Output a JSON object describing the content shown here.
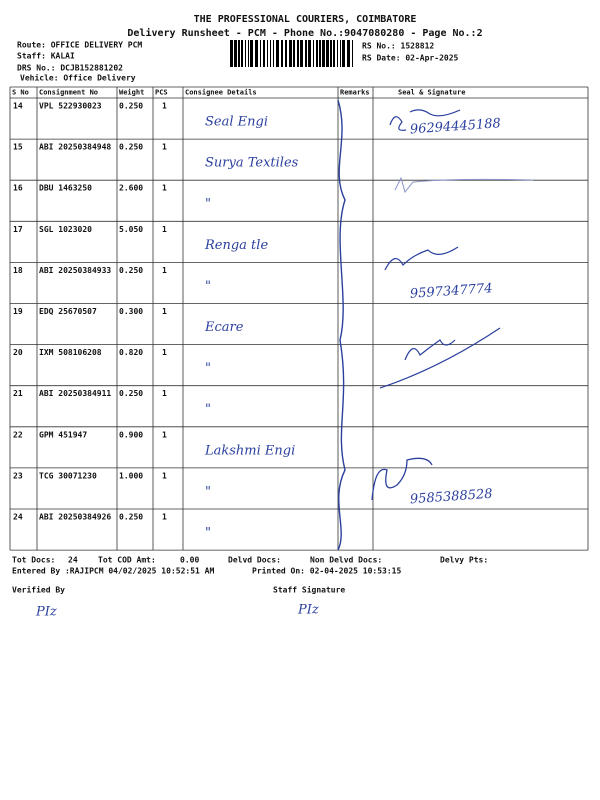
{
  "header": {
    "title": "THE PROFESSIONAL COURIERS, COIMBATORE",
    "subtitle": "Delivery Runsheet - PCM - Phone No.:9047080280 - Page No.:2",
    "route": "Route: OFFICE DELIVERY PCM",
    "staff": "Staff: KALAI",
    "drs_no": "DRS No.: DCJB152881202",
    "vehicle": "Vehicle: Office Delivery",
    "rs_no": "RS No.: 1528812",
    "rs_date": "RS Date: 02-Apr-2025"
  },
  "table": {
    "columns": [
      "S No",
      "Consignment No",
      "Weight",
      "PCS",
      "Consignee Details",
      "Remarks",
      "Seal & Signature"
    ],
    "rows": [
      [
        "14",
        "VPL 522930023",
        "0.250",
        "1"
      ],
      [
        "15",
        "ABI 20250384948",
        "0.250",
        "1"
      ],
      [
        "16",
        "DBU 1463250",
        "2.600",
        "1"
      ],
      [
        "17",
        "SGL 1023020",
        "5.050",
        "1"
      ],
      [
        "18",
        "ABI 20250384933",
        "0.250",
        "1"
      ],
      [
        "19",
        "EDQ 25670507",
        "0.300",
        "1"
      ],
      [
        "20",
        "IXM 508106208",
        "0.820",
        "1"
      ],
      [
        "21",
        "ABI 20250384911",
        "0.250",
        "1"
      ],
      [
        "22",
        "GPM 451947",
        "0.900",
        "1"
      ],
      [
        "23",
        "TCG 30071230",
        "1.000",
        "1"
      ],
      [
        "24",
        "ABI 20250384926",
        "0.250",
        "1"
      ]
    ],
    "handwritten_consignees": [
      "Seal Engi",
      "Surya Textiles",
      "\"",
      "Renga tle",
      "\"",
      "Ecare",
      "\"",
      "\"",
      "Lakshmi Engi",
      "\"",
      "\""
    ],
    "handwritten_phones": [
      {
        "row": 0,
        "text": "96294445188"
      },
      {
        "row": 4,
        "text": "9597347774"
      },
      {
        "row": 9,
        "text": "9585388528"
      }
    ]
  },
  "footer": {
    "tot_docs_label": "Tot Docs:",
    "tot_docs": "24",
    "tot_cod_label": "Tot COD Amt:",
    "tot_cod": "0.00",
    "delvd_docs_label": "Delvd Docs:",
    "non_delvd_label": "Non Delvd Docs:",
    "delvy_pts_label": "Delvy Pts:",
    "entered_by": "Entered By :RAJIPCM 04/02/2025 10:52:51 AM",
    "printed_on": "Printed On: 02-04-2025 10:53:15",
    "verified_by": "Verified By",
    "staff_signature": "Staff Signature",
    "verified_initials": "PIz",
    "staff_initials": "PIz"
  }
}
